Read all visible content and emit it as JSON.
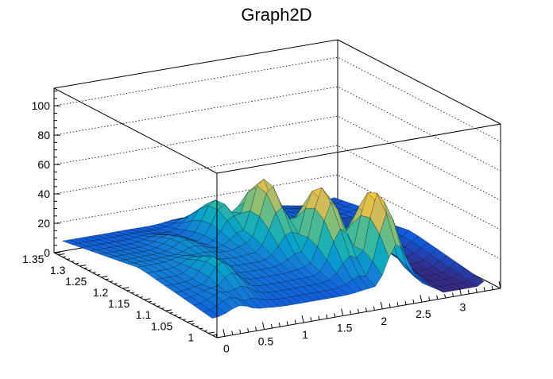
{
  "chart_data": {
    "type": "surface",
    "title": "Graph2D",
    "xlabel": "",
    "ylabel": "",
    "zlabel": "",
    "x_range": [
      -0.1,
      3.5
    ],
    "y_range": [
      0.98,
      1.36
    ],
    "z_range": [
      0,
      112
    ],
    "x_ticks": [
      {
        "v": 0,
        "label": "0"
      },
      {
        "v": 0.5,
        "label": "0.5"
      },
      {
        "v": 1,
        "label": "1"
      },
      {
        "v": 1.5,
        "label": "1.5"
      },
      {
        "v": 2,
        "label": "2"
      },
      {
        "v": 2.5,
        "label": "2.5"
      },
      {
        "v": 3,
        "label": "3"
      }
    ],
    "y_ticks": [
      {
        "v": 1.0,
        "label": "1"
      },
      {
        "v": 1.05,
        "label": "1.05"
      },
      {
        "v": 1.1,
        "label": "1.1"
      },
      {
        "v": 1.15,
        "label": "1.15"
      },
      {
        "v": 1.2,
        "label": "1.2"
      },
      {
        "v": 1.25,
        "label": "1.25"
      },
      {
        "v": 1.3,
        "label": "1.3"
      },
      {
        "v": 1.35,
        "label": "1.35"
      }
    ],
    "z_ticks": [
      {
        "v": 0,
        "label": "0"
      },
      {
        "v": 20,
        "label": "20"
      },
      {
        "v": 40,
        "label": "40"
      },
      {
        "v": 60,
        "label": "60"
      },
      {
        "v": 80,
        "label": "80"
      },
      {
        "v": 100,
        "label": "100"
      }
    ],
    "grid": true,
    "colormap": [
      "#352a87",
      "#0f5cdd",
      "#1481d6",
      "#06a4ca",
      "#2eb7a4",
      "#87bf77",
      "#d1bb59",
      "#fec832",
      "#f9fb0e"
    ],
    "surface_features": [
      {
        "x": 0.3,
        "y": 1.04,
        "z": 18
      },
      {
        "x": 0.55,
        "y": 1.1,
        "z": 30
      },
      {
        "x": 0.8,
        "y": 1.22,
        "z": 22
      },
      {
        "x": 1.15,
        "y": 1.26,
        "z": 10
      },
      {
        "x": 1.4,
        "y": 1.25,
        "z": 38
      },
      {
        "x": 1.65,
        "y": 1.19,
        "z": 60
      },
      {
        "x": 1.95,
        "y": 1.11,
        "z": 64
      },
      {
        "x": 2.3,
        "y": 1.05,
        "z": 68
      },
      {
        "x": 2.6,
        "y": 1.12,
        "z": 28
      }
    ]
  }
}
